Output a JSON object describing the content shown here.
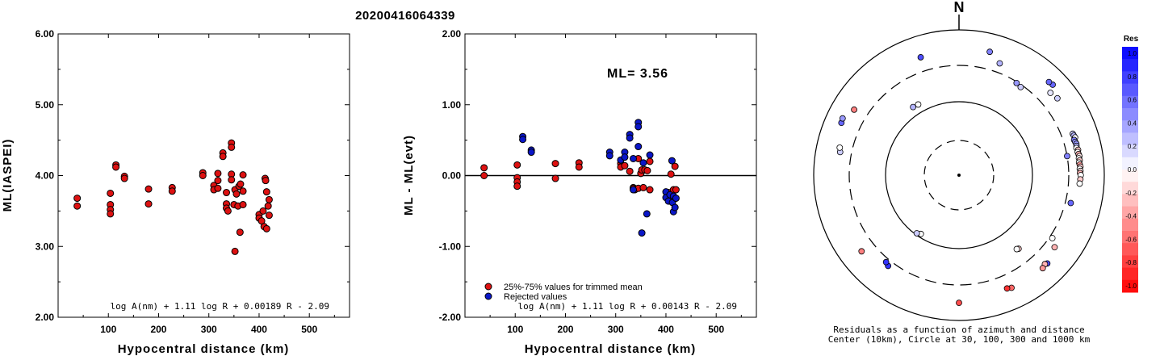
{
  "title": "20200416064339",
  "colors": {
    "accepted": "#dd1111",
    "rejected": "#0a16c8",
    "marker_edge": "#000000",
    "residual_positive": "#0000ff",
    "residual_negative": "#ff0000"
  },
  "chart_data": [
    {
      "type": "scatter",
      "xlabel": "Hypocentral distance (km)",
      "ylabel": "ML(IASPEI)",
      "xlim": [
        0,
        580
      ],
      "ylim": [
        2.0,
        6.0
      ],
      "xticks": [
        "100",
        "200",
        "300",
        "400",
        "500"
      ],
      "yticks": [
        "2.00",
        "3.00",
        "4.00",
        "5.00",
        "6.00"
      ],
      "formula": "log A(nm) + 1.11 log R + 0.00189 R - 2.09",
      "series": [
        {
          "points": [
            [
              38,
              3.68
            ],
            [
              38,
              3.57
            ],
            [
              104,
              3.75
            ],
            [
              104,
              3.59
            ],
            [
              104,
              3.52
            ],
            [
              104,
              3.46
            ],
            [
              115,
              4.15
            ],
            [
              115,
              4.12
            ],
            [
              132,
              3.99
            ],
            [
              132,
              3.96
            ],
            [
              180,
              3.81
            ],
            [
              180,
              3.6
            ],
            [
              227,
              3.83
            ],
            [
              227,
              3.78
            ],
            [
              288,
              4.04
            ],
            [
              288,
              4.0
            ],
            [
              310,
              3.86
            ],
            [
              310,
              3.8
            ],
            [
              318,
              4.03
            ],
            [
              318,
              3.93
            ],
            [
              318,
              3.82
            ],
            [
              328,
              4.32
            ],
            [
              328,
              4.27
            ],
            [
              335,
              3.76
            ],
            [
              335,
              3.6
            ],
            [
              335,
              3.54
            ],
            [
              338,
              3.5
            ],
            [
              345,
              4.46
            ],
            [
              345,
              4.4
            ],
            [
              345,
              4.02
            ],
            [
              345,
              3.94
            ],
            [
              350,
              3.59
            ],
            [
              352,
              2.93
            ],
            [
              352,
              3.8
            ],
            [
              355,
              3.74
            ],
            [
              358,
              3.57
            ],
            [
              360,
              3.85
            ],
            [
              362,
              3.2
            ],
            [
              363,
              3.88
            ],
            [
              368,
              4.01
            ],
            [
              368,
              3.78
            ],
            [
              368,
              3.59
            ],
            [
              400,
              3.45
            ],
            [
              400,
              3.4
            ],
            [
              405,
              3.36
            ],
            [
              408,
              3.5
            ],
            [
              410,
              3.28
            ],
            [
              412,
              3.96
            ],
            [
              413,
              3.93
            ],
            [
              415,
              3.77
            ],
            [
              415,
              3.25
            ],
            [
              418,
              3.57
            ],
            [
              420,
              3.44
            ],
            [
              420,
              3.66
            ]
          ]
        }
      ]
    },
    {
      "type": "scatter",
      "xlabel": "Hypocentral distance (km)",
      "ylabel": "ML - ML(evt)",
      "xlim": [
        0,
        580
      ],
      "ylim": [
        -2.0,
        2.0
      ],
      "xticks": [
        "100",
        "200",
        "300",
        "400",
        "500"
      ],
      "yticks": [
        "-2.00",
        "-1.00",
        "0.00",
        "1.00",
        "2.00"
      ],
      "annotation": "ML= 3.56",
      "formula": "log A(nm) + 1.11 log R + 0.00143 R - 2.09",
      "series": [
        {
          "name": "25%-75% values for trimmed mean",
          "color": "#dd1111",
          "points": [
            [
              38,
              0.11
            ],
            [
              38,
              0.0
            ],
            [
              104,
              0.15
            ],
            [
              104,
              -0.03
            ],
            [
              104,
              -0.09
            ],
            [
              104,
              -0.15
            ],
            [
              180,
              0.17
            ],
            [
              180,
              -0.04
            ],
            [
              227,
              0.18
            ],
            [
              227,
              0.12
            ],
            [
              310,
              0.17
            ],
            [
              310,
              0.12
            ],
            [
              318,
              0.14
            ],
            [
              328,
              0.06
            ],
            [
              335,
              -0.17
            ],
            [
              335,
              -0.18
            ],
            [
              338,
              -0.2
            ],
            [
              345,
              0.24
            ],
            [
              345,
              -0.18
            ],
            [
              350,
              0.03
            ],
            [
              352,
              0.08
            ],
            [
              355,
              -0.17
            ],
            [
              358,
              0.08
            ],
            [
              363,
              0.07
            ],
            [
              368,
              0.2
            ],
            [
              368,
              -0.2
            ],
            [
              405,
              -0.24
            ],
            [
              410,
              0.02
            ],
            [
              415,
              -0.2
            ],
            [
              418,
              0.13
            ],
            [
              420,
              -0.2
            ]
          ]
        },
        {
          "name": "Rejected values",
          "color": "#0a16c8",
          "points": [
            [
              115,
              0.55
            ],
            [
              115,
              0.51
            ],
            [
              132,
              0.36
            ],
            [
              132,
              0.33
            ],
            [
              288,
              0.33
            ],
            [
              288,
              0.28
            ],
            [
              310,
              0.22
            ],
            [
              318,
              0.33
            ],
            [
              318,
              0.26
            ],
            [
              328,
              0.58
            ],
            [
              328,
              0.53
            ],
            [
              335,
              0.24
            ],
            [
              335,
              -0.2
            ],
            [
              345,
              0.75
            ],
            [
              345,
              0.69
            ],
            [
              345,
              0.41
            ],
            [
              352,
              -0.81
            ],
            [
              355,
              0.18
            ],
            [
              362,
              -0.54
            ],
            [
              368,
              0.29
            ],
            [
              400,
              -0.23
            ],
            [
              400,
              -0.31
            ],
            [
              405,
              -0.36
            ],
            [
              408,
              -0.27
            ],
            [
              412,
              0.21
            ],
            [
              413,
              -0.38
            ],
            [
              415,
              -0.29
            ],
            [
              415,
              -0.51
            ],
            [
              418,
              -0.45
            ],
            [
              420,
              -0.32
            ]
          ]
        }
      ]
    },
    {
      "type": "polar-scatter",
      "north_label": "N",
      "colorbar_title": "Res",
      "colorbar_ticks": [
        "1.0",
        "0.8",
        "0.6",
        "0.4",
        "0.2",
        "0.0",
        "-0.2",
        "-0.4",
        "-0.6",
        "-0.8",
        "-1.0"
      ],
      "caption_line1": "Residuals as a function of azimuth and distance",
      "caption_line2": "Center (10km), Circle at 30, 100, 300 and 1000 km",
      "points": [
        {
          "az": 46,
          "dist": 600,
          "res": 0.6
        },
        {
          "az": 44,
          "dist": 585,
          "res": 0.6
        },
        {
          "az": 14,
          "dist": 540,
          "res": 0.5
        },
        {
          "az": 48,
          "dist": 470,
          "res": 0.1
        },
        {
          "az": 52,
          "dist": 500,
          "res": 0.2
        },
        {
          "az": 70,
          "dist": 440,
          "res": 0.2
        },
        {
          "az": 71,
          "dist": 445,
          "res": 0.3
        },
        {
          "az": 72,
          "dist": 455,
          "res": 0.0
        },
        {
          "az": 73,
          "dist": 430,
          "res": 0.5
        },
        {
          "az": 74,
          "dist": 437,
          "res": 0.4
        },
        {
          "az": 75,
          "dist": 446,
          "res": 0.4
        },
        {
          "az": 76,
          "dist": 440,
          "res": 0.3
        },
        {
          "az": 77,
          "dist": 432,
          "res": 0.0
        },
        {
          "az": 78,
          "dist": 450,
          "res": -0.2
        },
        {
          "az": 79,
          "dist": 438,
          "res": 0.0
        },
        {
          "az": 80,
          "dist": 445,
          "res": -0.3
        },
        {
          "az": 81,
          "dist": 452,
          "res": -0.1
        },
        {
          "az": 82,
          "dist": 440,
          "res": 0.0
        },
        {
          "az": 83,
          "dist": 448,
          "res": -0.2
        },
        {
          "az": 84,
          "dist": 435,
          "res": 0.0
        },
        {
          "az": 85,
          "dist": 442,
          "res": -0.4
        },
        {
          "az": 86,
          "dist": 450,
          "res": -0.2
        },
        {
          "az": 87,
          "dist": 438,
          "res": 0.0
        },
        {
          "az": 88,
          "dist": 446,
          "res": -0.1
        },
        {
          "az": 89,
          "dist": 440,
          "res": -0.3
        },
        {
          "az": 90,
          "dist": 450,
          "res": 0.0
        },
        {
          "az": 92,
          "dist": 445,
          "res": -0.2
        },
        {
          "az": 94,
          "dist": 438,
          "res": 0.0
        },
        {
          "az": 80,
          "dist": 300,
          "res": 0.5
        },
        {
          "az": 104,
          "dist": 360,
          "res": 0.6
        },
        {
          "az": 124,
          "dist": 330,
          "res": 0.0
        },
        {
          "az": 127,
          "dist": 420,
          "res": -0.3
        },
        {
          "az": 135,
          "dist": 500,
          "res": 0.7
        },
        {
          "az": 136,
          "dist": 480,
          "res": -0.3
        },
        {
          "az": 138,
          "dist": 505,
          "res": -0.4
        },
        {
          "az": 155,
          "dist": 490,
          "res": -0.6
        },
        {
          "az": 157,
          "dist": 470,
          "res": -0.8
        },
        {
          "az": 141,
          "dist": 190,
          "res": -0.2
        },
        {
          "az": 142,
          "dist": 185,
          "res": 0.0
        },
        {
          "az": 180,
          "dist": 550,
          "res": -0.7
        },
        {
          "az": 218,
          "dist": 360,
          "res": 0.8
        },
        {
          "az": 220,
          "dist": 340,
          "res": 0.8
        },
        {
          "az": 213,
          "dist": 90,
          "res": 0.0
        },
        {
          "az": 216,
          "dist": 95,
          "res": 0.2
        },
        {
          "az": 232,
          "dist": 480,
          "res": -0.5
        },
        {
          "az": 281,
          "dist": 440,
          "res": 0.2
        },
        {
          "az": 283,
          "dist": 460,
          "res": 0.0
        },
        {
          "az": 294,
          "dist": 570,
          "res": 0.6
        },
        {
          "az": 296,
          "dist": 585,
          "res": 0.4
        },
        {
          "az": 302,
          "dist": 480,
          "res": -0.5
        },
        {
          "az": 326,
          "dist": 130,
          "res": 0.3
        },
        {
          "az": 330,
          "dist": 128,
          "res": 0.0
        },
        {
          "az": 342,
          "dist": 485,
          "res": 0.7
        },
        {
          "az": 32,
          "dist": 290,
          "res": 0.4
        },
        {
          "az": 35,
          "dist": 280,
          "res": 0.2
        },
        {
          "az": 20,
          "dist": 410,
          "res": 0.3
        }
      ]
    }
  ]
}
